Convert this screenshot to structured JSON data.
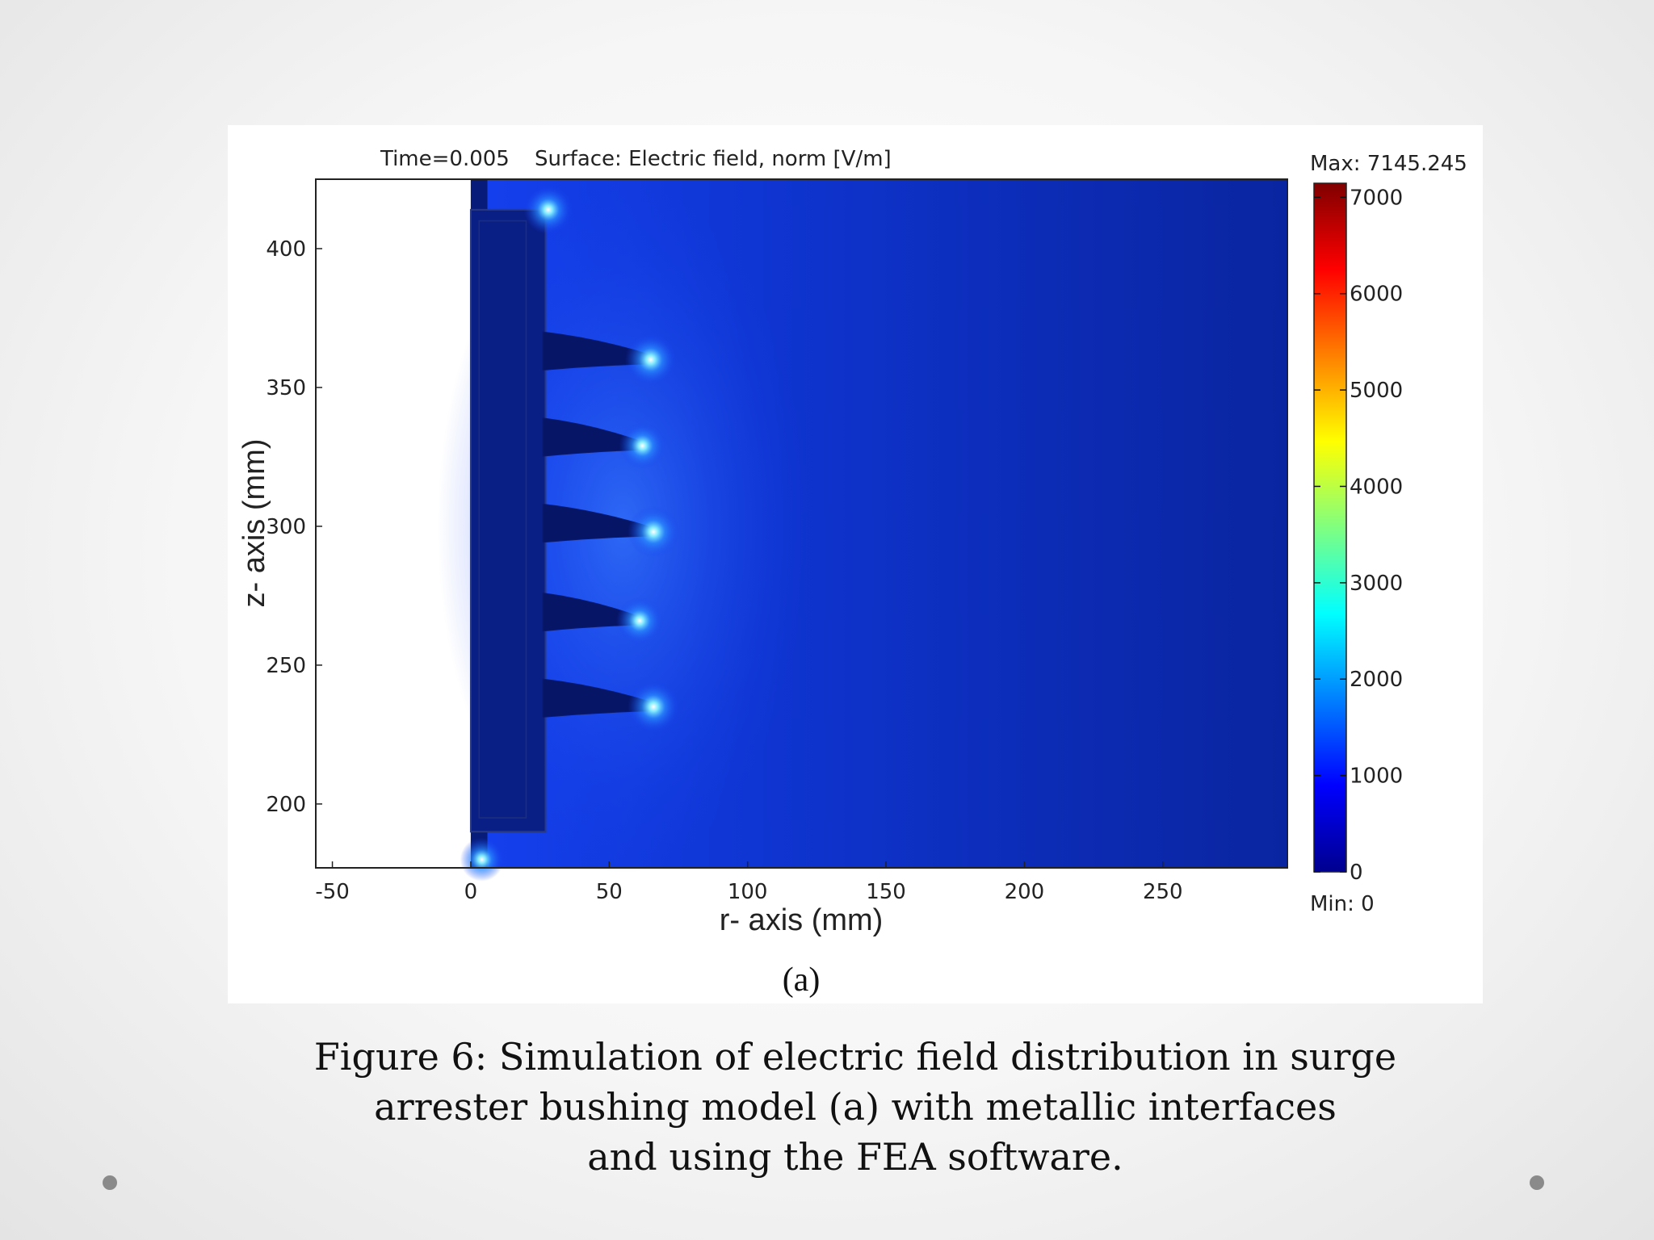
{
  "chart_data": {
    "type": "heatmap",
    "header_time": "Time=0.005",
    "header_surface": "Surface: Electric field, norm [V/m]",
    "xlabel": "r- axis (mm)",
    "ylabel": "z- axis (mm)",
    "xlim": [
      -56,
      295
    ],
    "ylim": [
      177,
      425
    ],
    "x_ticks": [
      -50,
      0,
      50,
      100,
      150,
      200,
      250
    ],
    "y_ticks": [
      200,
      250,
      300,
      350,
      400
    ],
    "colorbar": {
      "min": 0,
      "max": 7145.245,
      "ticks": [
        0,
        1000,
        2000,
        3000,
        4000,
        5000,
        6000,
        7000
      ],
      "max_label": "Max: 7145.245",
      "min_label": "Min: 0",
      "colormap": "jet"
    },
    "field_hotspots": [
      {
        "r": 65,
        "z": 360,
        "value": 2000
      },
      {
        "r": 62,
        "z": 329,
        "value": 1700
      },
      {
        "r": 66,
        "z": 298,
        "value": 2000
      },
      {
        "r": 61,
        "z": 266,
        "value": 1700
      },
      {
        "r": 66,
        "z": 235,
        "value": 2000
      },
      {
        "r": 28,
        "z": 414,
        "value": 1800
      },
      {
        "r": 4,
        "z": 180,
        "value": 1500
      }
    ],
    "sheds": [
      {
        "z": 360,
        "tip_r": 66
      },
      {
        "z": 329,
        "tip_r": 62
      },
      {
        "z": 298,
        "tip_r": 66
      },
      {
        "z": 266,
        "tip_r": 61
      },
      {
        "z": 235,
        "tip_r": 66
      }
    ],
    "sublabel": "(a)"
  },
  "caption": {
    "line1": "Figure 6: Simulation of electric field distribution in surge",
    "line2": "arrester bushing model (a) with metallic interfaces",
    "line3": "and using the FEA software."
  }
}
